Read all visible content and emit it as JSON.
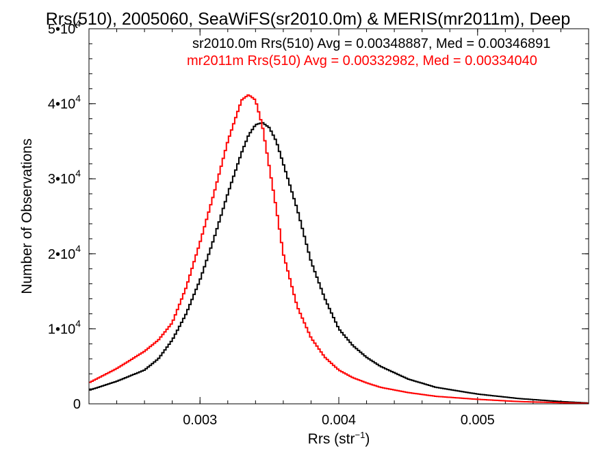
{
  "chart_data": {
    "type": "line",
    "title": "Rrs(510), 2005060, SeaWiFS(sr2010.0m) & MERIS(mr2011m), Deep",
    "xlabel": "Rrs (str",
    "xlabel_exponent": "−1",
    "xlabel_suffix": ")",
    "ylabel": "Number of Observations",
    "xlim": [
      0.0022,
      0.0058
    ],
    "ylim": [
      0,
      50000
    ],
    "grid": false,
    "legend_position": "top-right",
    "x_ticks": [
      {
        "value": 0.003,
        "label": "0.003"
      },
      {
        "value": 0.004,
        "label": "0.004"
      },
      {
        "value": 0.005,
        "label": "0.005"
      }
    ],
    "y_ticks": [
      {
        "value": 0,
        "mantissa": "0",
        "exponent": ""
      },
      {
        "value": 10000,
        "mantissa": "1•10",
        "exponent": "4"
      },
      {
        "value": 20000,
        "mantissa": "2•10",
        "exponent": "4"
      },
      {
        "value": 30000,
        "mantissa": "3•10",
        "exponent": "4"
      },
      {
        "value": 40000,
        "mantissa": "4•10",
        "exponent": "4"
      },
      {
        "value": 50000,
        "mantissa": "5•10",
        "exponent": "4"
      }
    ],
    "series": [
      {
        "name": "sr2010.0m",
        "legend": "sr2010.0m Rrs(510) Avg = 0.00348887, Med = 0.00346891",
        "color": "#000000",
        "x": [
          0.0022,
          0.0024,
          0.0026,
          0.0027,
          0.0028,
          0.0029,
          0.003,
          0.0031,
          0.0032,
          0.0033,
          0.00335,
          0.0034,
          0.00345,
          0.0035,
          0.00355,
          0.0036,
          0.0037,
          0.0038,
          0.0039,
          0.004,
          0.0041,
          0.0042,
          0.0043,
          0.0045,
          0.0047,
          0.005,
          0.0053,
          0.0056,
          0.0058
        ],
        "y": [
          1800,
          3000,
          4500,
          6000,
          8500,
          12000,
          16500,
          22000,
          28000,
          33500,
          35800,
          37200,
          37500,
          36800,
          35000,
          32000,
          26000,
          19000,
          14000,
          10000,
          7800,
          6200,
          5000,
          3300,
          2200,
          1300,
          700,
          300,
          100
        ]
      },
      {
        "name": "mr2011m",
        "legend": "mr2011m Rrs(510) Avg = 0.00332982, Med = 0.00334040",
        "color": "#ff0000",
        "x": [
          0.0022,
          0.0024,
          0.0026,
          0.0027,
          0.0028,
          0.0029,
          0.003,
          0.0031,
          0.0032,
          0.0033,
          0.00335,
          0.0034,
          0.00345,
          0.0035,
          0.00355,
          0.0036,
          0.0037,
          0.0038,
          0.0039,
          0.004,
          0.0041,
          0.0042,
          0.0043,
          0.0045,
          0.0047,
          0.005,
          0.0053,
          0.0056,
          0.0058
        ],
        "y": [
          2800,
          4700,
          7000,
          8500,
          10800,
          15500,
          21500,
          28000,
          35000,
          40500,
          41200,
          40500,
          37000,
          31500,
          26000,
          20000,
          13000,
          8800,
          6200,
          4500,
          3500,
          2800,
          2200,
          1500,
          1000,
          600,
          300,
          150,
          50
        ]
      }
    ]
  }
}
